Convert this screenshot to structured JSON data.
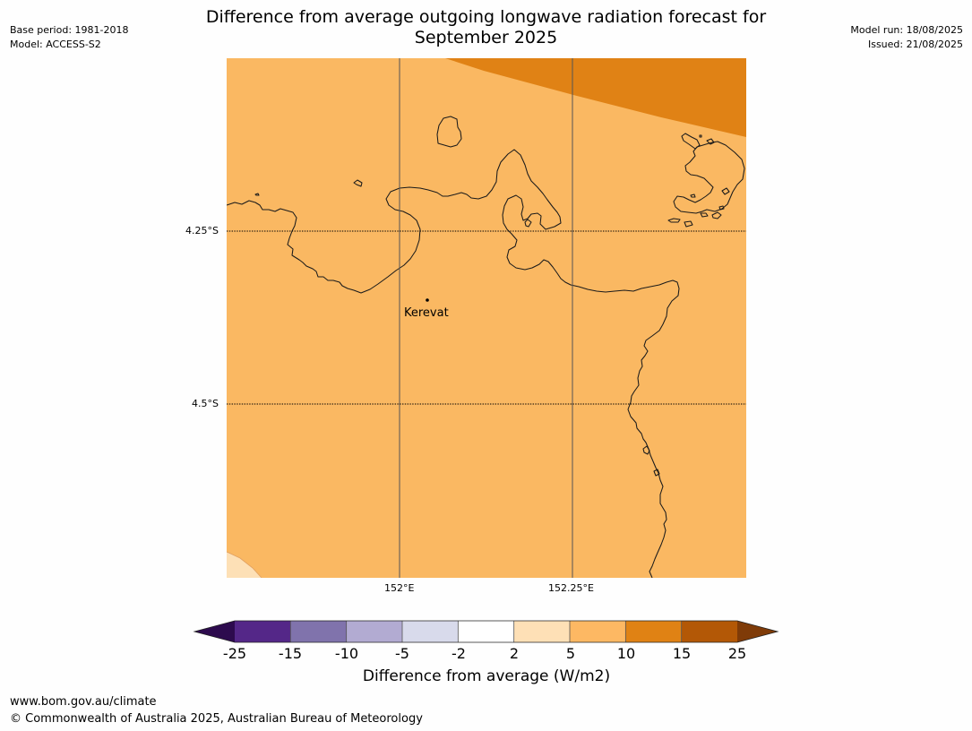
{
  "header": {
    "title_line1": "Difference from average outgoing longwave radiation forecast for",
    "title_line2": "September 2025",
    "base_period": "Base period: 1981-2018",
    "model": "Model: ACCESS-S2",
    "model_run": "Model run: 18/08/2025",
    "issued": "Issued: 21/08/2025"
  },
  "map": {
    "lat_labels": [
      "4.25°S",
      "4.5°S"
    ],
    "lon_labels": [
      "152°E",
      "152.25°E"
    ],
    "places": [
      {
        "name": "Kerevat"
      }
    ],
    "colors": {
      "land_sea_fill": "#fab862",
      "high_anomaly": "#e08215",
      "low_anomaly": "#fde0b6",
      "coast": "#1a1a1a"
    }
  },
  "colorbar": {
    "title": "Difference from average (W/m2)",
    "tick_labels": [
      "-25",
      "-15",
      "-10",
      "-5",
      "-2",
      "2",
      "5",
      "10",
      "15",
      "25"
    ],
    "colors": [
      "#2d0b4e",
      "#542788",
      "#8073ac",
      "#b2abd2",
      "#d8daeb",
      "#ffffff",
      "#fee0b6",
      "#fdb863",
      "#e08214",
      "#b35806",
      "#7f3b08"
    ]
  },
  "footer": {
    "url": "www.bom.gov.au/climate",
    "copyright": "© Commonwealth of Australia 2025, Australian Bureau of Meteorology"
  }
}
